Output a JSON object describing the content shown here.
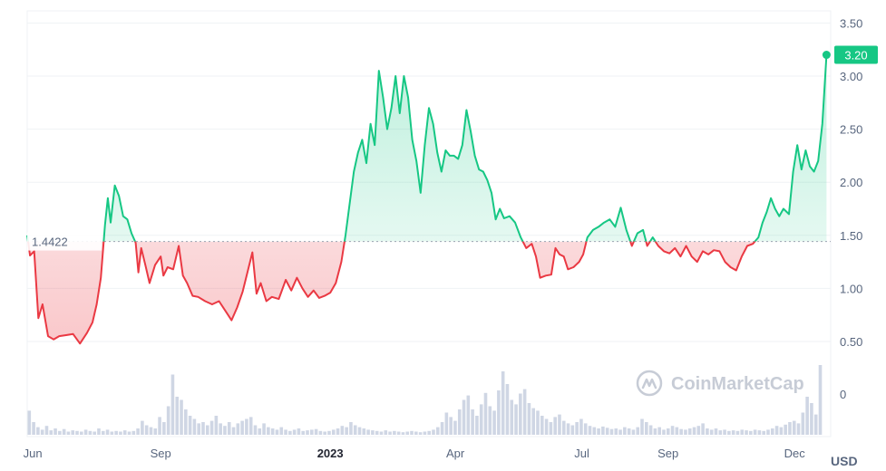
{
  "chart_data": {
    "type": "area",
    "baseline": 1.4422,
    "baseline_label": "1.4422",
    "last_price": 3.2,
    "last_price_label": "3.20",
    "currency_label": "USD",
    "watermark": "CoinMarketCap",
    "ylim": [
      0,
      3.5
    ],
    "y_ticks": [
      {
        "value": 3.5,
        "label": "3.50"
      },
      {
        "value": 3.0,
        "label": "3.00"
      },
      {
        "value": 2.5,
        "label": "2.50"
      },
      {
        "value": 2.0,
        "label": "2.00"
      },
      {
        "value": 1.5,
        "label": "1.50"
      },
      {
        "value": 1.0,
        "label": "1.00"
      },
      {
        "value": 0.5,
        "label": "0.50"
      }
    ],
    "volume_axis_label": "0",
    "x_range": [
      "2022-05-28",
      "2023-12-27"
    ],
    "x_ticks": [
      {
        "date": "2022-06-01",
        "label": "Jun",
        "bold": false
      },
      {
        "date": "2022-09-01",
        "label": "Sep",
        "bold": false
      },
      {
        "date": "2023-01-01",
        "label": "2023",
        "bold": true
      },
      {
        "date": "2023-04-01",
        "label": "Apr",
        "bold": false
      },
      {
        "date": "2023-07-01",
        "label": "Jul",
        "bold": false
      },
      {
        "date": "2023-09-01",
        "label": "Sep",
        "bold": false
      },
      {
        "date": "2023-12-01",
        "label": "Dec",
        "bold": false
      }
    ],
    "colors": {
      "up": "#16c784",
      "down": "#ea3943",
      "grid": "#eff2f5",
      "axis_text": "#58667e",
      "volume": "#cfd6e4"
    },
    "series": [
      {
        "points": [
          [
            "2022-05-28",
            1.5
          ],
          [
            "2022-05-30",
            1.31
          ],
          [
            "2022-06-02",
            1.35
          ],
          [
            "2022-06-05",
            0.72
          ],
          [
            "2022-06-08",
            0.85
          ],
          [
            "2022-06-12",
            0.55
          ],
          [
            "2022-06-16",
            0.52
          ],
          [
            "2022-06-20",
            0.55
          ],
          [
            "2022-06-25",
            0.56
          ],
          [
            "2022-06-30",
            0.57
          ],
          [
            "2022-07-05",
            0.48
          ],
          [
            "2022-07-10",
            0.58
          ],
          [
            "2022-07-14",
            0.68
          ],
          [
            "2022-07-17",
            0.85
          ],
          [
            "2022-07-20",
            1.1
          ],
          [
            "2022-07-23",
            1.6
          ],
          [
            "2022-07-25",
            1.85
          ],
          [
            "2022-07-27",
            1.62
          ],
          [
            "2022-07-30",
            1.97
          ],
          [
            "2022-08-02",
            1.87
          ],
          [
            "2022-08-05",
            1.68
          ],
          [
            "2022-08-08",
            1.65
          ],
          [
            "2022-08-11",
            1.52
          ],
          [
            "2022-08-14",
            1.43
          ],
          [
            "2022-08-16",
            1.15
          ],
          [
            "2022-08-18",
            1.38
          ],
          [
            "2022-08-21",
            1.22
          ],
          [
            "2022-08-24",
            1.05
          ],
          [
            "2022-08-28",
            1.22
          ],
          [
            "2022-09-01",
            1.3
          ],
          [
            "2022-09-03",
            1.12
          ],
          [
            "2022-09-06",
            1.2
          ],
          [
            "2022-09-10",
            1.18
          ],
          [
            "2022-09-14",
            1.4
          ],
          [
            "2022-09-17",
            1.12
          ],
          [
            "2022-09-20",
            1.05
          ],
          [
            "2022-09-24",
            0.93
          ],
          [
            "2022-09-28",
            0.92
          ],
          [
            "2022-10-03",
            0.88
          ],
          [
            "2022-10-08",
            0.85
          ],
          [
            "2022-10-13",
            0.88
          ],
          [
            "2022-10-18",
            0.78
          ],
          [
            "2022-10-22",
            0.7
          ],
          [
            "2022-10-26",
            0.82
          ],
          [
            "2022-10-30",
            0.97
          ],
          [
            "2022-11-03",
            1.18
          ],
          [
            "2022-11-06",
            1.34
          ],
          [
            "2022-11-09",
            0.95
          ],
          [
            "2022-11-12",
            1.05
          ],
          [
            "2022-11-16",
            0.88
          ],
          [
            "2022-11-20",
            0.92
          ],
          [
            "2022-11-25",
            0.9
          ],
          [
            "2022-11-30",
            1.08
          ],
          [
            "2022-12-04",
            0.98
          ],
          [
            "2022-12-08",
            1.1
          ],
          [
            "2022-12-12",
            1.0
          ],
          [
            "2022-12-16",
            0.92
          ],
          [
            "2022-12-20",
            0.98
          ],
          [
            "2022-12-24",
            0.91
          ],
          [
            "2022-12-28",
            0.93
          ],
          [
            "2023-01-01",
            0.96
          ],
          [
            "2023-01-05",
            1.05
          ],
          [
            "2023-01-09",
            1.25
          ],
          [
            "2023-01-12",
            1.5
          ],
          [
            "2023-01-15",
            1.8
          ],
          [
            "2023-01-18",
            2.1
          ],
          [
            "2023-01-21",
            2.28
          ],
          [
            "2023-01-24",
            2.4
          ],
          [
            "2023-01-27",
            2.18
          ],
          [
            "2023-01-30",
            2.55
          ],
          [
            "2023-02-02",
            2.35
          ],
          [
            "2023-02-05",
            3.05
          ],
          [
            "2023-02-08",
            2.8
          ],
          [
            "2023-02-11",
            2.5
          ],
          [
            "2023-02-14",
            2.7
          ],
          [
            "2023-02-17",
            3.0
          ],
          [
            "2023-02-20",
            2.65
          ],
          [
            "2023-02-23",
            3.0
          ],
          [
            "2023-02-26",
            2.8
          ],
          [
            "2023-03-01",
            2.4
          ],
          [
            "2023-03-04",
            2.2
          ],
          [
            "2023-03-07",
            1.9
          ],
          [
            "2023-03-10",
            2.35
          ],
          [
            "2023-03-13",
            2.7
          ],
          [
            "2023-03-16",
            2.55
          ],
          [
            "2023-03-19",
            2.28
          ],
          [
            "2023-03-22",
            2.1
          ],
          [
            "2023-03-25",
            2.3
          ],
          [
            "2023-03-28",
            2.25
          ],
          [
            "2023-03-31",
            2.25
          ],
          [
            "2023-04-03",
            2.22
          ],
          [
            "2023-04-06",
            2.35
          ],
          [
            "2023-04-09",
            2.68
          ],
          [
            "2023-04-12",
            2.48
          ],
          [
            "2023-04-15",
            2.25
          ],
          [
            "2023-04-18",
            2.12
          ],
          [
            "2023-04-21",
            2.1
          ],
          [
            "2023-04-24",
            2.02
          ],
          [
            "2023-04-27",
            1.9
          ],
          [
            "2023-04-30",
            1.65
          ],
          [
            "2023-05-03",
            1.75
          ],
          [
            "2023-05-06",
            1.66
          ],
          [
            "2023-05-10",
            1.68
          ],
          [
            "2023-05-14",
            1.62
          ],
          [
            "2023-05-18",
            1.48
          ],
          [
            "2023-05-22",
            1.38
          ],
          [
            "2023-05-26",
            1.42
          ],
          [
            "2023-05-29",
            1.3
          ],
          [
            "2023-06-01",
            1.1
          ],
          [
            "2023-06-05",
            1.12
          ],
          [
            "2023-06-09",
            1.13
          ],
          [
            "2023-06-12",
            1.38
          ],
          [
            "2023-06-15",
            1.32
          ],
          [
            "2023-06-18",
            1.3
          ],
          [
            "2023-06-21",
            1.18
          ],
          [
            "2023-06-25",
            1.2
          ],
          [
            "2023-06-29",
            1.25
          ],
          [
            "2023-07-02",
            1.32
          ],
          [
            "2023-07-05",
            1.48
          ],
          [
            "2023-07-09",
            1.55
          ],
          [
            "2023-07-13",
            1.58
          ],
          [
            "2023-07-17",
            1.62
          ],
          [
            "2023-07-21",
            1.65
          ],
          [
            "2023-07-25",
            1.58
          ],
          [
            "2023-07-29",
            1.76
          ],
          [
            "2023-08-02",
            1.55
          ],
          [
            "2023-08-06",
            1.4
          ],
          [
            "2023-08-10",
            1.52
          ],
          [
            "2023-08-14",
            1.55
          ],
          [
            "2023-08-17",
            1.4
          ],
          [
            "2023-08-21",
            1.48
          ],
          [
            "2023-08-25",
            1.4
          ],
          [
            "2023-08-29",
            1.35
          ],
          [
            "2023-09-02",
            1.33
          ],
          [
            "2023-09-06",
            1.38
          ],
          [
            "2023-09-10",
            1.3
          ],
          [
            "2023-09-14",
            1.4
          ],
          [
            "2023-09-18",
            1.3
          ],
          [
            "2023-09-22",
            1.25
          ],
          [
            "2023-09-26",
            1.35
          ],
          [
            "2023-09-30",
            1.32
          ],
          [
            "2023-10-04",
            1.36
          ],
          [
            "2023-10-08",
            1.35
          ],
          [
            "2023-10-12",
            1.25
          ],
          [
            "2023-10-16",
            1.2
          ],
          [
            "2023-10-20",
            1.17
          ],
          [
            "2023-10-24",
            1.3
          ],
          [
            "2023-10-28",
            1.4
          ],
          [
            "2023-11-01",
            1.42
          ],
          [
            "2023-11-05",
            1.48
          ],
          [
            "2023-11-08",
            1.62
          ],
          [
            "2023-11-11",
            1.72
          ],
          [
            "2023-11-14",
            1.85
          ],
          [
            "2023-11-17",
            1.75
          ],
          [
            "2023-11-20",
            1.68
          ],
          [
            "2023-11-23",
            1.75
          ],
          [
            "2023-11-27",
            1.7
          ],
          [
            "2023-11-30",
            2.1
          ],
          [
            "2023-12-03",
            2.35
          ],
          [
            "2023-12-06",
            2.12
          ],
          [
            "2023-12-09",
            2.3
          ],
          [
            "2023-12-12",
            2.15
          ],
          [
            "2023-12-15",
            2.1
          ],
          [
            "2023-12-18",
            2.2
          ],
          [
            "2023-12-21",
            2.55
          ],
          [
            "2023-12-24",
            3.2
          ]
        ]
      }
    ],
    "volume": [
      0.38,
      0.2,
      0.12,
      0.08,
      0.14,
      0.07,
      0.1,
      0.06,
      0.09,
      0.05,
      0.07,
      0.06,
      0.05,
      0.08,
      0.06,
      0.05,
      0.1,
      0.06,
      0.08,
      0.05,
      0.06,
      0.05,
      0.07,
      0.05,
      0.06,
      0.1,
      0.22,
      0.15,
      0.12,
      0.1,
      0.28,
      0.2,
      0.45,
      0.95,
      0.6,
      0.55,
      0.4,
      0.3,
      0.25,
      0.18,
      0.2,
      0.15,
      0.22,
      0.3,
      0.18,
      0.14,
      0.2,
      0.12,
      0.18,
      0.22,
      0.25,
      0.28,
      0.15,
      0.1,
      0.18,
      0.12,
      0.1,
      0.08,
      0.12,
      0.08,
      0.06,
      0.08,
      0.1,
      0.06,
      0.07,
      0.08,
      0.09,
      0.06,
      0.05,
      0.06,
      0.08,
      0.1,
      0.14,
      0.12,
      0.2,
      0.15,
      0.12,
      0.1,
      0.08,
      0.07,
      0.06,
      0.05,
      0.07,
      0.05,
      0.06,
      0.05,
      0.04,
      0.05,
      0.06,
      0.05,
      0.04,
      0.05,
      0.06,
      0.08,
      0.12,
      0.2,
      0.35,
      0.28,
      0.22,
      0.4,
      0.55,
      0.62,
      0.4,
      0.3,
      0.48,
      0.66,
      0.45,
      0.38,
      0.7,
      1.0,
      0.8,
      0.55,
      0.48,
      0.65,
      0.72,
      0.5,
      0.42,
      0.38,
      0.3,
      0.25,
      0.2,
      0.28,
      0.32,
      0.22,
      0.18,
      0.15,
      0.2,
      0.25,
      0.18,
      0.14,
      0.12,
      0.1,
      0.13,
      0.11,
      0.09,
      0.1,
      0.08,
      0.12,
      0.1,
      0.08,
      0.12,
      0.25,
      0.2,
      0.15,
      0.1,
      0.12,
      0.08,
      0.1,
      0.14,
      0.12,
      0.09,
      0.08,
      0.1,
      0.12,
      0.14,
      0.18,
      0.1,
      0.08,
      0.1,
      0.07,
      0.08,
      0.06,
      0.07,
      0.06,
      0.08,
      0.07,
      0.06,
      0.08,
      0.07,
      0.06,
      0.08,
      0.1,
      0.14,
      0.12,
      0.16,
      0.2,
      0.22,
      0.18,
      0.35,
      0.6,
      0.5,
      0.32,
      1.1
    ]
  }
}
